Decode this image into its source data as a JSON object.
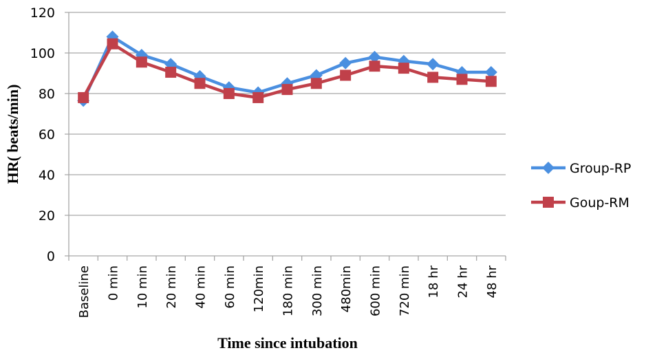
{
  "chart_data": {
    "type": "line",
    "x_label": "Time since intubation",
    "y_label": "HR( beats/min)",
    "categories": [
      "Baseline",
      "0 min",
      "10 min",
      "20 min",
      "40 min",
      "60 min",
      "120min",
      "180 min",
      "300 min",
      "480min",
      "600 min",
      "720 min",
      "18 hr",
      "24 hr",
      "48 hr"
    ],
    "series": [
      {
        "name": "Group-RP",
        "color": "#4a8fe0",
        "marker": "diamond",
        "values": [
          76.5,
          108,
          99,
          94.5,
          88.5,
          83,
          80.5,
          85,
          89,
          95,
          98,
          96,
          94.5,
          90.5,
          90.5
        ]
      },
      {
        "name": "Goup-RM",
        "color": "#c0404a",
        "marker": "square",
        "values": [
          78,
          104.5,
          95.5,
          90.5,
          85,
          80,
          78,
          82,
          85,
          89,
          93.5,
          92.5,
          88,
          87,
          86
        ]
      }
    ],
    "ylim": [
      0,
      120
    ],
    "yticks": [
      0,
      20,
      40,
      60,
      80,
      100,
      120
    ],
    "grid": true,
    "legend": "right"
  }
}
